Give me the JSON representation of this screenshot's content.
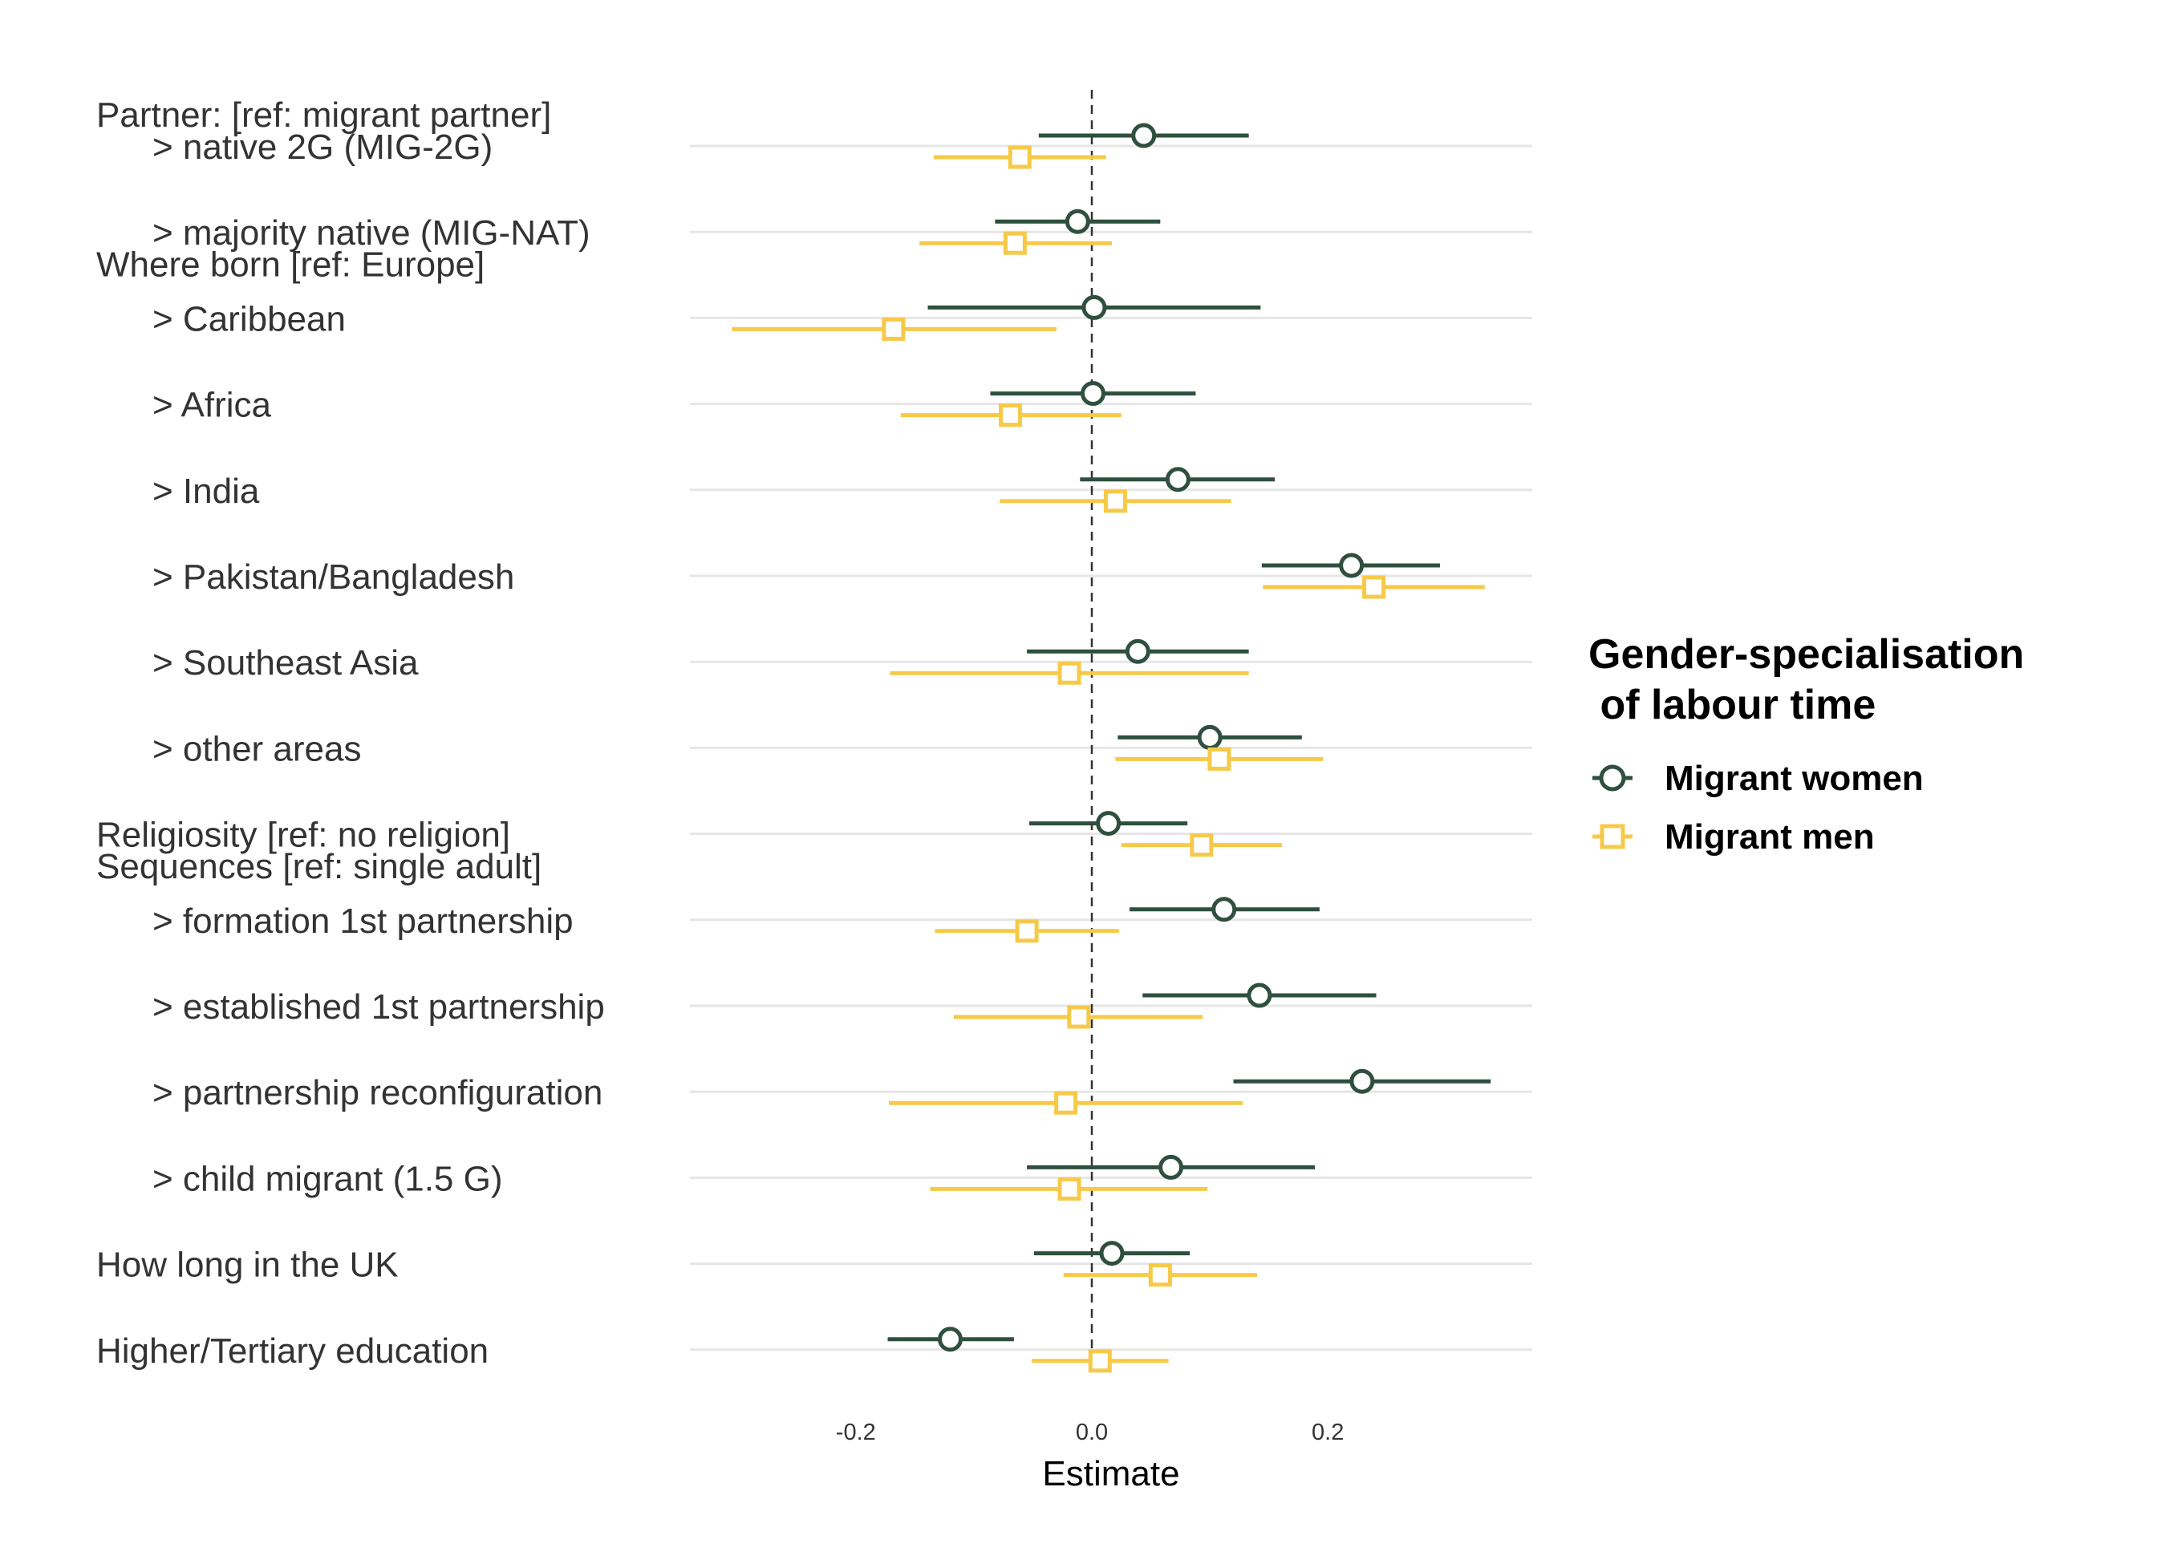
{
  "chart_data": {
    "type": "forest-plot",
    "xlabel": "Estimate",
    "xlim": [
      -0.335,
      0.37
    ],
    "xticks": [
      -0.2,
      0.0,
      0.2
    ],
    "xtick_labels": [
      "-0.2",
      "0.0",
      "0.2"
    ],
    "reference_line": 0,
    "grid": "horizontal",
    "legend": {
      "title_line1": "Gender-specialisation",
      "title_line2": " of labour time",
      "placement": "right"
    },
    "series": [
      {
        "name": "Migrant women",
        "marker": "circle",
        "color": "#2f4f3f"
      },
      {
        "name": "Migrant men",
        "marker": "square",
        "color": "#f7c948"
      }
    ],
    "group_headers": [
      {
        "text": "Partner: [ref: migrant partner]",
        "before_row": 0
      },
      {
        "text": "Where born [ref: Europe]",
        "before_row": 2
      },
      {
        "text": "Sequences [ref: single adult]",
        "before_row": 9
      }
    ],
    "rows": [
      {
        "label": "> native 2G (MIG-2G)",
        "indent": true,
        "women": {
          "est": 0.044,
          "lo": -0.045,
          "hi": 0.133
        },
        "men": {
          "est": -0.061,
          "lo": -0.134,
          "hi": 0.012
        }
      },
      {
        "label": "> majority native (MIG-NAT)",
        "indent": true,
        "women": {
          "est": -0.012,
          "lo": -0.082,
          "hi": 0.058
        },
        "men": {
          "est": -0.065,
          "lo": -0.146,
          "hi": 0.017
        }
      },
      {
        "label": "> Caribbean",
        "indent": true,
        "women": {
          "est": 0.002,
          "lo": -0.139,
          "hi": 0.143
        },
        "men": {
          "est": -0.168,
          "lo": -0.305,
          "hi": -0.03
        }
      },
      {
        "label": "> Africa",
        "indent": true,
        "women": {
          "est": 0.001,
          "lo": -0.086,
          "hi": 0.088
        },
        "men": {
          "est": -0.069,
          "lo": -0.162,
          "hi": 0.025
        }
      },
      {
        "label": "> India",
        "indent": true,
        "women": {
          "est": 0.073,
          "lo": -0.01,
          "hi": 0.155
        },
        "men": {
          "est": 0.02,
          "lo": -0.078,
          "hi": 0.118
        }
      },
      {
        "label": "> Pakistan/Bangladesh",
        "indent": true,
        "women": {
          "est": 0.22,
          "lo": 0.144,
          "hi": 0.295
        },
        "men": {
          "est": 0.239,
          "lo": 0.145,
          "hi": 0.333
        }
      },
      {
        "label": "> Southeast Asia",
        "indent": true,
        "women": {
          "est": 0.039,
          "lo": -0.055,
          "hi": 0.133
        },
        "men": {
          "est": -0.019,
          "lo": -0.171,
          "hi": 0.133
        }
      },
      {
        "label": "> other areas",
        "indent": true,
        "women": {
          "est": 0.1,
          "lo": 0.022,
          "hi": 0.178
        },
        "men": {
          "est": 0.108,
          "lo": 0.02,
          "hi": 0.196
        }
      },
      {
        "label": "Religiosity [ref: no religion]",
        "indent": false,
        "women": {
          "est": 0.014,
          "lo": -0.053,
          "hi": 0.081
        },
        "men": {
          "est": 0.093,
          "lo": 0.025,
          "hi": 0.161
        }
      },
      {
        "label": "> formation 1st partnership",
        "indent": true,
        "women": {
          "est": 0.112,
          "lo": 0.032,
          "hi": 0.193
        },
        "men": {
          "est": -0.055,
          "lo": -0.133,
          "hi": 0.023
        }
      },
      {
        "label": "> established 1st partnership",
        "indent": true,
        "women": {
          "est": 0.142,
          "lo": 0.043,
          "hi": 0.241
        },
        "men": {
          "est": -0.011,
          "lo": -0.117,
          "hi": 0.094
        }
      },
      {
        "label": "> partnership reconfiguration",
        "indent": true,
        "women": {
          "est": 0.229,
          "lo": 0.12,
          "hi": 0.338
        },
        "men": {
          "est": -0.022,
          "lo": -0.172,
          "hi": 0.128
        }
      },
      {
        "label": "> child migrant (1.5 G)",
        "indent": true,
        "women": {
          "est": 0.067,
          "lo": -0.055,
          "hi": 0.189
        },
        "men": {
          "est": -0.019,
          "lo": -0.137,
          "hi": 0.098
        }
      },
      {
        "label": "How long in the UK",
        "indent": false,
        "women": {
          "est": 0.017,
          "lo": -0.049,
          "hi": 0.083
        },
        "men": {
          "est": 0.058,
          "lo": -0.024,
          "hi": 0.14
        }
      },
      {
        "label": "Higher/Tertiary education",
        "indent": false,
        "women": {
          "est": -0.12,
          "lo": -0.173,
          "hi": -0.066
        },
        "men": {
          "est": 0.007,
          "lo": -0.051,
          "hi": 0.065
        }
      }
    ]
  }
}
